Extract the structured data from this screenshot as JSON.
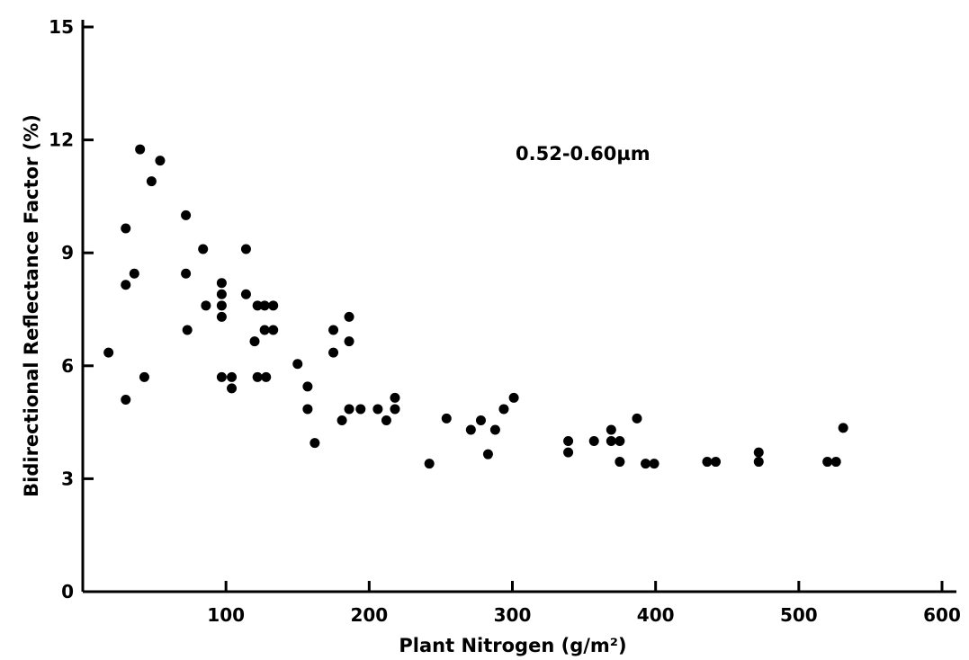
{
  "chart_data": {
    "type": "scatter",
    "title": "",
    "annotation": "0.52-0.60µm",
    "xlabel": "Plant Nitrogen (g/m²)",
    "ylabel": "Bidirectional Reflectance Factor (%)",
    "xlim": [
      0,
      600
    ],
    "ylim": [
      0,
      15
    ],
    "xticks": [
      100,
      200,
      300,
      400,
      500,
      600
    ],
    "yticks": [
      0,
      3,
      6,
      9,
      12,
      15
    ],
    "xtick_labels": [
      "100",
      "200",
      "300",
      "400",
      "500",
      "600"
    ],
    "ytick_labels": [
      "0",
      "3",
      "6",
      "9",
      "12",
      "15"
    ],
    "grid": false,
    "series": [
      {
        "points": [
          [
            18,
            6.35
          ],
          [
            30,
            9.65
          ],
          [
            30,
            8.15
          ],
          [
            30,
            5.1
          ],
          [
            36,
            8.45
          ],
          [
            40,
            11.75
          ],
          [
            43,
            5.7
          ],
          [
            48,
            10.9
          ],
          [
            54,
            11.45
          ],
          [
            72,
            10.0
          ],
          [
            72,
            8.45
          ],
          [
            73,
            6.95
          ],
          [
            84,
            9.1
          ],
          [
            86,
            7.6
          ],
          [
            97,
            8.2
          ],
          [
            97,
            7.9
          ],
          [
            97,
            7.6
          ],
          [
            97,
            7.3
          ],
          [
            97,
            5.7
          ],
          [
            104,
            5.7
          ],
          [
            104,
            5.4
          ],
          [
            114,
            9.1
          ],
          [
            114,
            7.9
          ],
          [
            120,
            6.65
          ],
          [
            122,
            7.6
          ],
          [
            122,
            5.7
          ],
          [
            127,
            7.6
          ],
          [
            127,
            6.95
          ],
          [
            128,
            5.7
          ],
          [
            133,
            7.6
          ],
          [
            133,
            6.95
          ],
          [
            150,
            6.05
          ],
          [
            157,
            5.45
          ],
          [
            157,
            4.85
          ],
          [
            162,
            3.95
          ],
          [
            175,
            6.95
          ],
          [
            175,
            6.35
          ],
          [
            181,
            4.55
          ],
          [
            186,
            7.3
          ],
          [
            186,
            6.65
          ],
          [
            186,
            4.85
          ],
          [
            194,
            4.85
          ],
          [
            206,
            4.85
          ],
          [
            212,
            4.55
          ],
          [
            218,
            5.15
          ],
          [
            218,
            4.85
          ],
          [
            242,
            3.4
          ],
          [
            254,
            4.6
          ],
          [
            271,
            4.3
          ],
          [
            278,
            4.55
          ],
          [
            283,
            3.65
          ],
          [
            288,
            4.3
          ],
          [
            294,
            4.85
          ],
          [
            301,
            5.15
          ],
          [
            339,
            4.0
          ],
          [
            339,
            3.7
          ],
          [
            357,
            4.0
          ],
          [
            369,
            4.3
          ],
          [
            369,
            4.0
          ],
          [
            375,
            4.0
          ],
          [
            375,
            3.45
          ],
          [
            387,
            4.6
          ],
          [
            393,
            3.4
          ],
          [
            399,
            3.4
          ],
          [
            436,
            3.45
          ],
          [
            442,
            3.45
          ],
          [
            472,
            3.7
          ],
          [
            472,
            3.45
          ],
          [
            520,
            3.45
          ],
          [
            526,
            3.45
          ],
          [
            531,
            4.35
          ]
        ]
      }
    ]
  }
}
